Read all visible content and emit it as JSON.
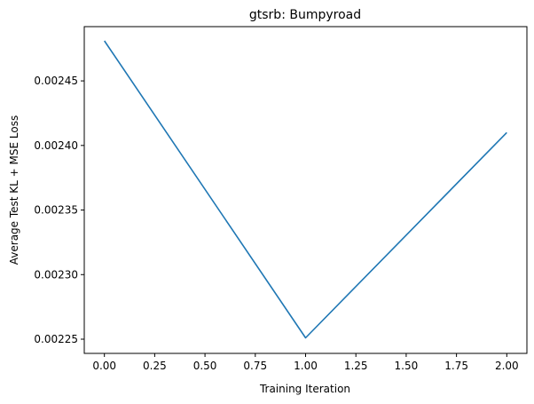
{
  "chart_data": {
    "type": "line",
    "title": "gtsrb: Bumpyroad",
    "xlabel": "Training Iteration",
    "ylabel": "Average Test KL + MSE Loss",
    "xlim": [
      -0.1,
      2.1
    ],
    "ylim": [
      0.002239,
      0.002492
    ],
    "xticks": [
      0.0,
      0.25,
      0.5,
      0.75,
      1.0,
      1.25,
      1.5,
      1.75,
      2.0
    ],
    "xtick_labels": [
      "0.00",
      "0.25",
      "0.50",
      "0.75",
      "1.00",
      "1.25",
      "1.50",
      "1.75",
      "2.00"
    ],
    "yticks": [
      0.00225,
      0.0023,
      0.00235,
      0.0024,
      0.00245
    ],
    "ytick_labels": [
      "0.00225",
      "0.00230",
      "0.00235",
      "0.00240",
      "0.00245"
    ],
    "grid": false,
    "legend": "none",
    "series": [
      {
        "x": [
          0,
          1,
          2
        ],
        "values": [
          0.002481,
          0.002251,
          0.00241
        ],
        "color": "#1f77b4"
      }
    ]
  }
}
